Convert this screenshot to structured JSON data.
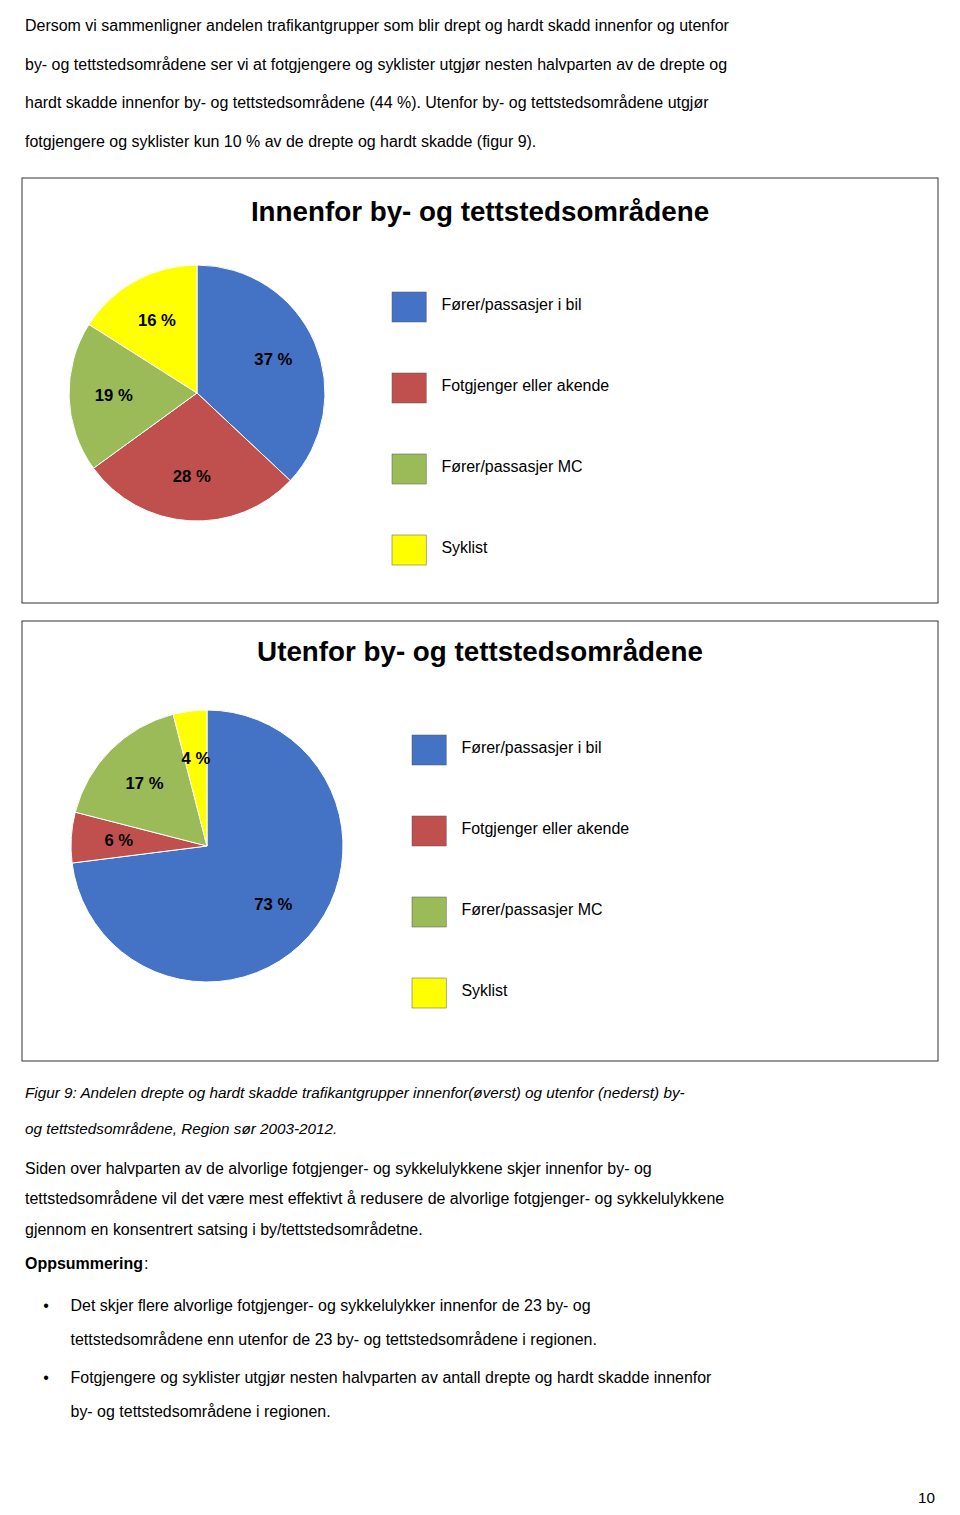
{
  "chart_data": [
    {
      "type": "pie",
      "title": "Innenfor by- og tettstedsområdene",
      "categories": [
        "Fører/passasjer i bil",
        "Fotgjenger eller akende",
        "Fører/passasjer MC",
        "Syklist"
      ],
      "values": [
        37,
        28,
        19,
        16
      ],
      "value_labels": [
        "37 %",
        "28 %",
        "19 %",
        "16 %"
      ],
      "colors": [
        "#4472C4",
        "#C0504D",
        "#9BBB59",
        "#FFFF00"
      ],
      "data_labels": true,
      "legend": "right"
    },
    {
      "type": "pie",
      "title": "Utenfor by- og tettstedsområdene",
      "categories": [
        "Fører/passasjer i bil",
        "Fotgjenger eller akende",
        "Fører/passasjer MC",
        "Syklist"
      ],
      "values": [
        73,
        6,
        17,
        4
      ],
      "value_labels": [
        "73 %",
        "6 %",
        "17 %",
        "4 %"
      ],
      "colors": [
        "#4472C4",
        "#C0504D",
        "#9BBB59",
        "#FFFF00"
      ],
      "data_labels": true,
      "legend": "right"
    }
  ],
  "intro_lines": [
    "Dersom vi sammenligner andelen trafikantgrupper som blir drept og hardt skadd innenfor og utenfor",
    "by- og tettstedsområdene ser vi at fotgjengere og syklister utgjør nesten halvparten av de drepte og",
    "hardt skadde innenfor by- og tettstedsområdene (44 %). Utenfor by- og tettstedsområdene utgjør",
    "fotgjengere og syklister kun 10 % av de drepte og hardt skadde (figur 9)."
  ],
  "caption_lines": [
    "Figur 9: Andelen drepte og hardt skadde trafikantgrupper innenfor(øverst) og utenfor (nederst) by-",
    "og tettstedsområdene, Region sør 2003-2012."
  ],
  "body_lines": [
    "Siden over halvparten av de alvorlige fotgjenger- og sykkelulykkene skjer innenfor by- og",
    "tettstedsområdene vil det være mest effektivt å redusere de alvorlige fotgjenger- og sykkelulykkene",
    "gjennom en konsentrert satsing i by/tettstedsområdetne."
  ],
  "summary_title": "Oppsummering",
  "summary_suffix": ":",
  "bullet_symbol": "•",
  "bullets": [
    [
      "Det skjer flere alvorlige fotgjenger- og sykkelulykker innenfor de 23 by- og",
      "tettstedsområdene enn utenfor de 23 by- og tettstedsområdene i regionen."
    ],
    [
      "Fotgjengere og syklister utgjør nesten halvparten av antall drepte og hardt skadde innenfor",
      "by- og tettstedsområdene i regionen."
    ]
  ],
  "page_number": "10"
}
